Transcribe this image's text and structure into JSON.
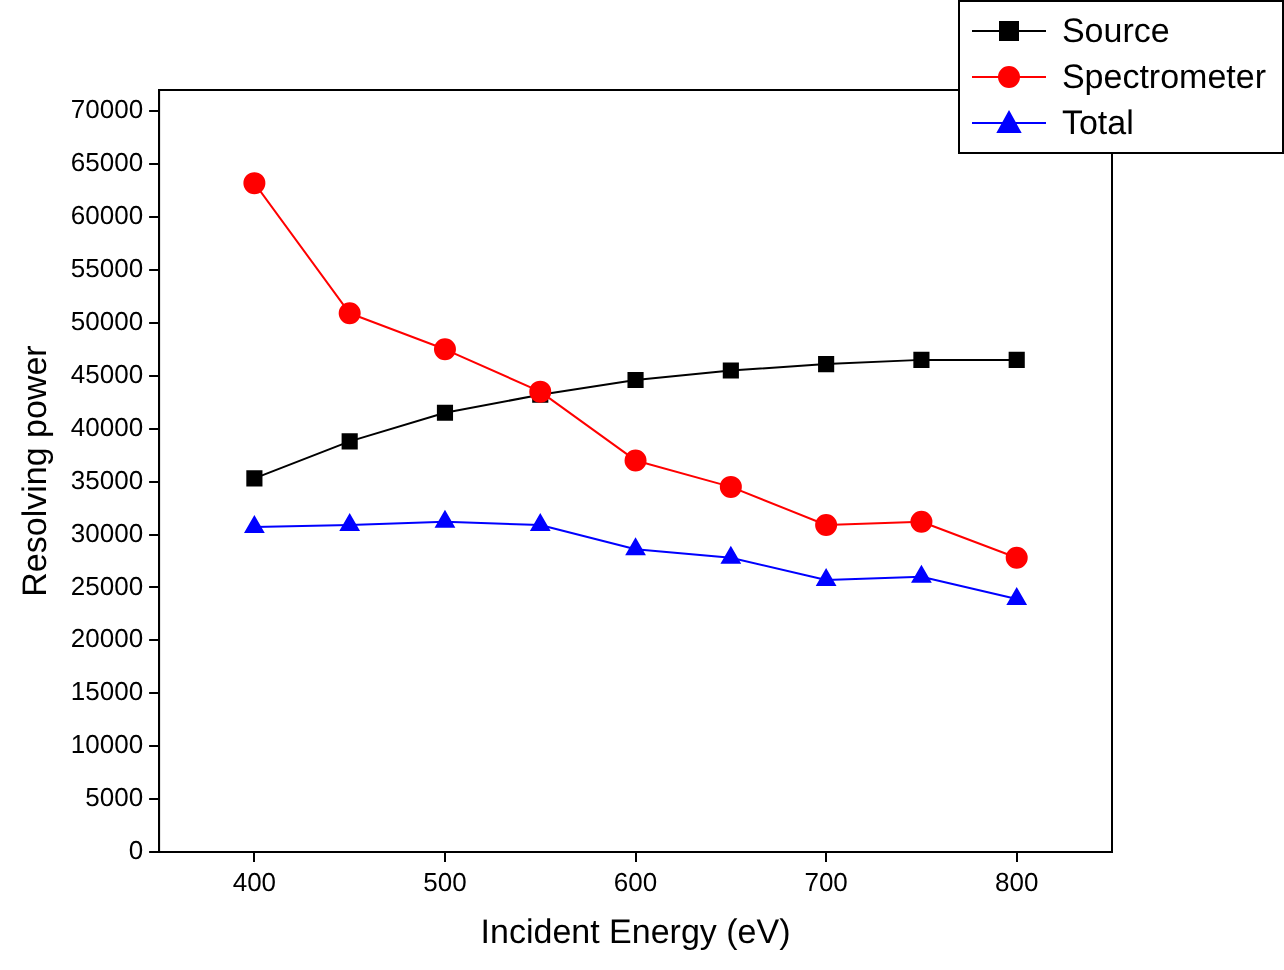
{
  "chart_data": {
    "type": "line",
    "xlabel": "Incident Energy (eV)",
    "ylabel": "Resolving power",
    "x": [
      400,
      450,
      500,
      550,
      600,
      650,
      700,
      750,
      800
    ],
    "series": [
      {
        "name": "Source",
        "color": "#000000",
        "marker": "square",
        "values": [
          35300,
          38800,
          41500,
          43200,
          44600,
          45500,
          46100,
          46500,
          46500
        ]
      },
      {
        "name": "Spectrometer",
        "color": "#ff0000",
        "marker": "circle",
        "values": [
          63200,
          50900,
          47500,
          43500,
          37000,
          34500,
          30900,
          31200,
          27800
        ]
      },
      {
        "name": "Total",
        "color": "#0000ff",
        "marker": "triangle",
        "values": [
          30700,
          30900,
          31200,
          30900,
          28600,
          27800,
          25700,
          26000,
          23900
        ]
      }
    ],
    "xlim": [
      350,
      850
    ],
    "xticks": [
      400,
      500,
      600,
      700,
      800
    ],
    "ylim": [
      0,
      72000
    ],
    "yticks": [
      0,
      5000,
      10000,
      15000,
      20000,
      25000,
      30000,
      35000,
      40000,
      45000,
      50000,
      55000,
      60000,
      65000,
      70000
    ],
    "grid": false,
    "legend": "top right"
  }
}
